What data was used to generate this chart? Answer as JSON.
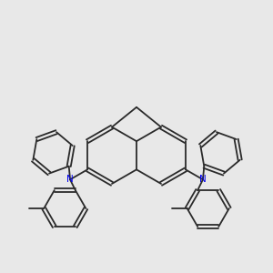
{
  "bg_color": "#e8e8e8",
  "bond_color": "#2a2a2a",
  "nitrogen_color": "#0000ee",
  "lw": 1.3,
  "dbo": 0.018,
  "figsize": [
    3.0,
    3.0
  ],
  "dpi": 100
}
